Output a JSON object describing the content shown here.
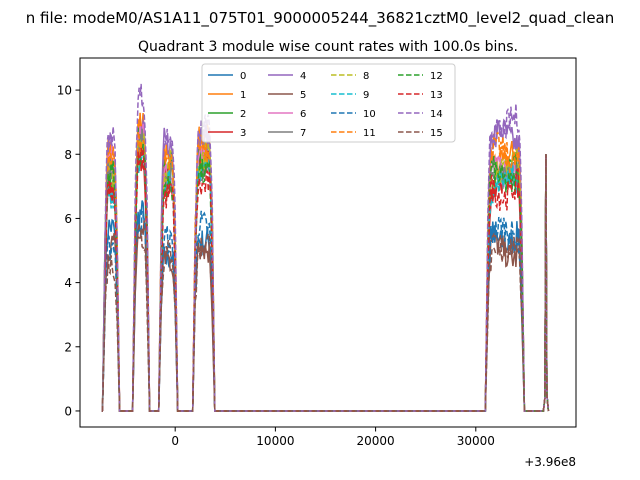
{
  "figure": {
    "suptitle": "n file: modeM0/AS1A11_075T01_9000005244_36821cztM0_level2_quad_clean",
    "title": "Quadrant 3 module wise count rates with 100.0s bins.",
    "offset_text": "+3.96e8"
  },
  "chart_data": {
    "type": "line",
    "title": "Quadrant 3 module wise count rates with 100.0s bins.",
    "xlabel": "",
    "ylabel": "",
    "x_offset": 396000000,
    "xlim": [
      -9500,
      40000
    ],
    "ylim": [
      -0.5,
      11
    ],
    "xticks": [
      0,
      10000,
      20000,
      30000
    ],
    "xtick_labels": [
      "0",
      "10000",
      "20000",
      "30000"
    ],
    "yticks": [
      0,
      2,
      4,
      6,
      8,
      10
    ],
    "ytick_labels": [
      "0",
      "2",
      "4",
      "6",
      "8",
      "10"
    ],
    "grid": false,
    "legend_position": "top-center",
    "legend_columns": 4,
    "segments": [
      [
        -7000,
        -5800
      ],
      [
        -4000,
        -2800
      ],
      [
        -1400,
        0
      ],
      [
        2000,
        3700
      ],
      [
        31200,
        34600
      ],
      [
        36900,
        37100
      ]
    ],
    "series": [
      {
        "name": "0",
        "color": "#1f77b4",
        "dash": "solid",
        "levels": [
          5.5,
          6.0,
          5.0,
          5.5,
          5.4,
          8.0
        ]
      },
      {
        "name": "1",
        "color": "#ff7f0e",
        "dash": "solid",
        "levels": [
          7.9,
          8.7,
          8.0,
          8.5,
          7.9,
          8.0
        ]
      },
      {
        "name": "2",
        "color": "#2ca02c",
        "dash": "solid",
        "levels": [
          7.3,
          8.2,
          7.4,
          7.8,
          7.4,
          8.0
        ]
      },
      {
        "name": "3",
        "color": "#d62728",
        "dash": "solid",
        "levels": [
          7.0,
          7.8,
          7.0,
          7.5,
          7.0,
          8.0
        ]
      },
      {
        "name": "4",
        "color": "#9467bd",
        "dash": "solid",
        "levels": [
          8.3,
          9.0,
          8.2,
          8.5,
          8.5,
          8.0
        ]
      },
      {
        "name": "5",
        "color": "#8c564b",
        "dash": "solid",
        "levels": [
          5.0,
          5.8,
          4.9,
          5.2,
          5.0,
          8.0
        ]
      },
      {
        "name": "6",
        "color": "#e377c2",
        "dash": "solid",
        "levels": [
          7.6,
          8.4,
          7.6,
          8.0,
          7.6,
          8.0
        ]
      },
      {
        "name": "7",
        "color": "#7f7f7f",
        "dash": "solid",
        "levels": [
          7.4,
          8.1,
          7.4,
          7.8,
          7.4,
          8.0
        ]
      },
      {
        "name": "8",
        "color": "#bcbd22",
        "dash": "dashed",
        "levels": [
          7.5,
          8.3,
          7.5,
          7.9,
          7.6,
          8.0
        ]
      },
      {
        "name": "9",
        "color": "#17becf",
        "dash": "dashed",
        "levels": [
          7.0,
          7.8,
          7.1,
          7.4,
          7.1,
          8.0
        ]
      },
      {
        "name": "10",
        "color": "#1f77b4",
        "dash": "dashed",
        "levels": [
          5.3,
          6.1,
          5.2,
          5.6,
          5.5,
          8.0
        ]
      },
      {
        "name": "11",
        "color": "#ff7f0e",
        "dash": "dashed",
        "levels": [
          7.8,
          8.6,
          7.8,
          8.3,
          8.0,
          8.0
        ]
      },
      {
        "name": "12",
        "color": "#2ca02c",
        "dash": "dashed",
        "levels": [
          7.2,
          8.0,
          7.2,
          7.6,
          7.3,
          8.0
        ]
      },
      {
        "name": "13",
        "color": "#d62728",
        "dash": "dashed",
        "levels": [
          6.8,
          7.6,
          6.9,
          7.2,
          6.9,
          8.0
        ]
      },
      {
        "name": "14",
        "color": "#9467bd",
        "dash": "dashed",
        "levels": [
          8.6,
          9.6,
          8.5,
          8.8,
          8.9,
          8.0
        ]
      },
      {
        "name": "15",
        "color": "#8c564b",
        "dash": "dashed",
        "levels": [
          4.8,
          5.5,
          4.7,
          5.0,
          4.9,
          8.0
        ]
      }
    ]
  }
}
